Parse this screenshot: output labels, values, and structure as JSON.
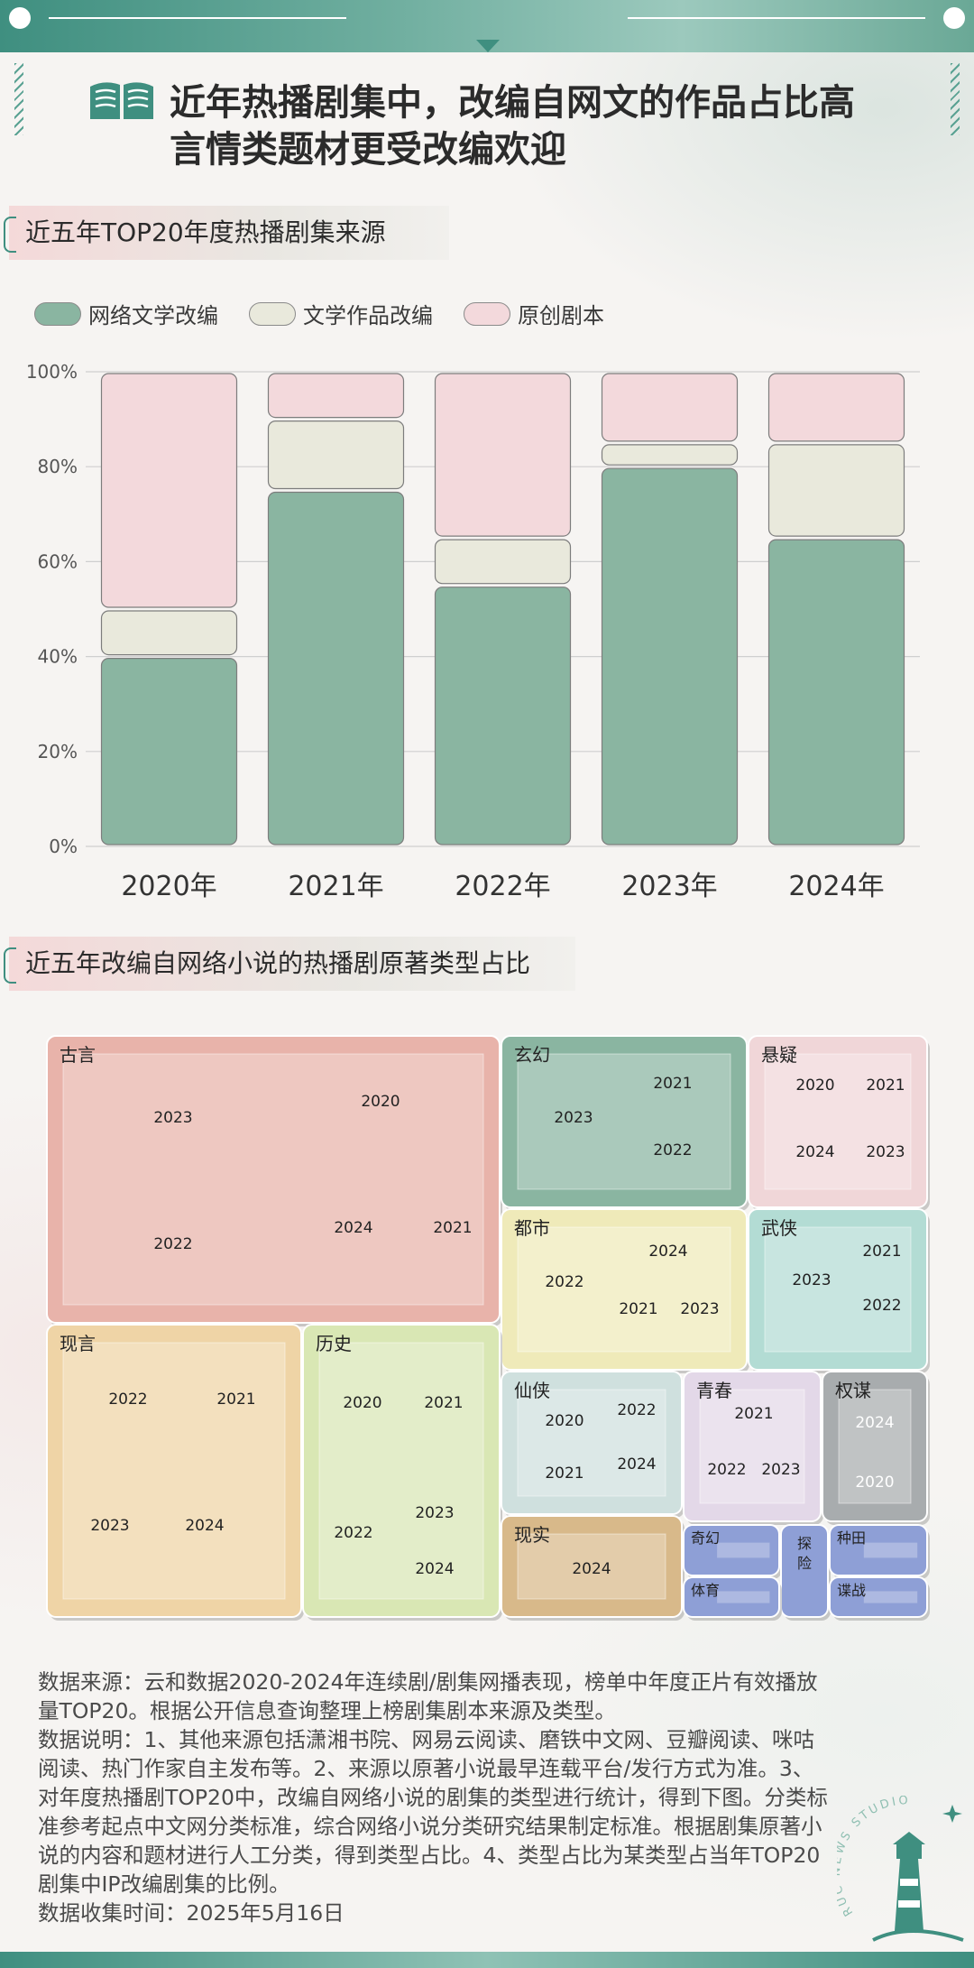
{
  "headline": {
    "line1": "近年热播剧集中，改编自网文的作品占比高",
    "line2": "言情类题材更受改编欢迎"
  },
  "icons": {
    "title_icon": "open-book-icon",
    "stamp_icon": "lighthouse-icon"
  },
  "section1": {
    "title": "近五年TOP20年度热播剧集来源"
  },
  "section2": {
    "title": "近五年改编自网络小说的热播剧原著类型占比"
  },
  "colors": {
    "accent": "#3f8f80",
    "network_lit": "#8ab5a1",
    "literary": "#e9e9dc",
    "original": "#f3d9dc"
  },
  "chart_data": [
    {
      "type": "bar",
      "stacked": true,
      "categories": [
        "2020年",
        "2021年",
        "2022年",
        "2023年",
        "2024年"
      ],
      "series": [
        {
          "name": "网络文学改编",
          "color": "#8ab5a1",
          "values": [
            40,
            75,
            55,
            80,
            65
          ]
        },
        {
          "name": "文学作品改编",
          "color": "#e9e9dc",
          "values": [
            10,
            15,
            10,
            5,
            20
          ]
        },
        {
          "name": "原创剧本",
          "color": "#f3d9dc",
          "values": [
            50,
            10,
            35,
            15,
            15
          ]
        }
      ],
      "yticks": [
        "0%",
        "20%",
        "40%",
        "60%",
        "80%",
        "100%"
      ],
      "ylim": [
        0,
        100
      ],
      "grid": true,
      "legend": "top-left"
    },
    {
      "type": "treemap",
      "groups": [
        {
          "name": "古言",
          "color": "#e8b3aa",
          "children": [
            "2023",
            "2020",
            "2022",
            "2024",
            "2021"
          ]
        },
        {
          "name": "玄幻",
          "color": "#8ab5a1",
          "children": [
            "2023",
            "2021",
            "2022"
          ]
        },
        {
          "name": "悬疑",
          "color": "#f0d6d8",
          "children": [
            "2020",
            "2021",
            "2024",
            "2023"
          ]
        },
        {
          "name": "都市",
          "color": "#efeab9",
          "children": [
            "2022",
            "2024",
            "2021",
            "2023"
          ]
        },
        {
          "name": "武侠",
          "color": "#b3dcd4",
          "children": [
            "2023",
            "2021",
            "2022"
          ]
        },
        {
          "name": "现言",
          "color": "#efd4a6",
          "children": [
            "2022",
            "2021",
            "2023",
            "2024"
          ]
        },
        {
          "name": "历史",
          "color": "#d9e7b4",
          "children": [
            "2020",
            "2021",
            "2022",
            "2023",
            "2024"
          ]
        },
        {
          "name": "仙侠",
          "color": "#cfe0de",
          "children": [
            "2020",
            "2022",
            "2021",
            "2024"
          ]
        },
        {
          "name": "青春",
          "color": "#e3d8e8",
          "children": [
            "2021",
            "2022",
            "2023"
          ]
        },
        {
          "name": "权谋",
          "color": "#a8acae",
          "children": [
            "2024",
            "2020"
          ]
        },
        {
          "name": "现实",
          "color": "#d8b98a",
          "children": [
            "2024"
          ]
        },
        {
          "name": "奇幻",
          "color": "#8e9fd6",
          "children": []
        },
        {
          "name": "探险",
          "color": "#8e9fd6",
          "children": []
        },
        {
          "name": "种田",
          "color": "#8e9fd6",
          "children": []
        },
        {
          "name": "体育",
          "color": "#8e9fd6",
          "children": []
        },
        {
          "name": "谍战",
          "color": "#8e9fd6",
          "children": []
        }
      ]
    }
  ],
  "notes": {
    "source": "数据来源：云和数据2020-2024年连续剧/剧集网播表现，榜单中年度正片有效播放量TOP20。根据公开信息查询整理上榜剧集剧本来源及类型。",
    "explanation": "数据说明：1、其他来源包括潇湘书院、网易云阅读、磨铁中文网、豆瓣阅读、咪咕阅读、热门作家自主发布等。2、来源以原著小说最早连载平台/发行方式为准。3、对年度热播剧TOP20中，改编自网络小说的剧集的类型进行统计，得到下图。分类标准参考起点中文网分类标准，综合网络小说分类研究结果制定标准。根据剧集原著小说的内容和题材进行人工分类，得到类型占比。4、类型占比为某类型占当年TOP20剧集中IP改编剧集的比例。",
    "date": "数据收集时间：2025年5月16日"
  },
  "stamp": {
    "text": "RUC NEWS STUDIO"
  }
}
